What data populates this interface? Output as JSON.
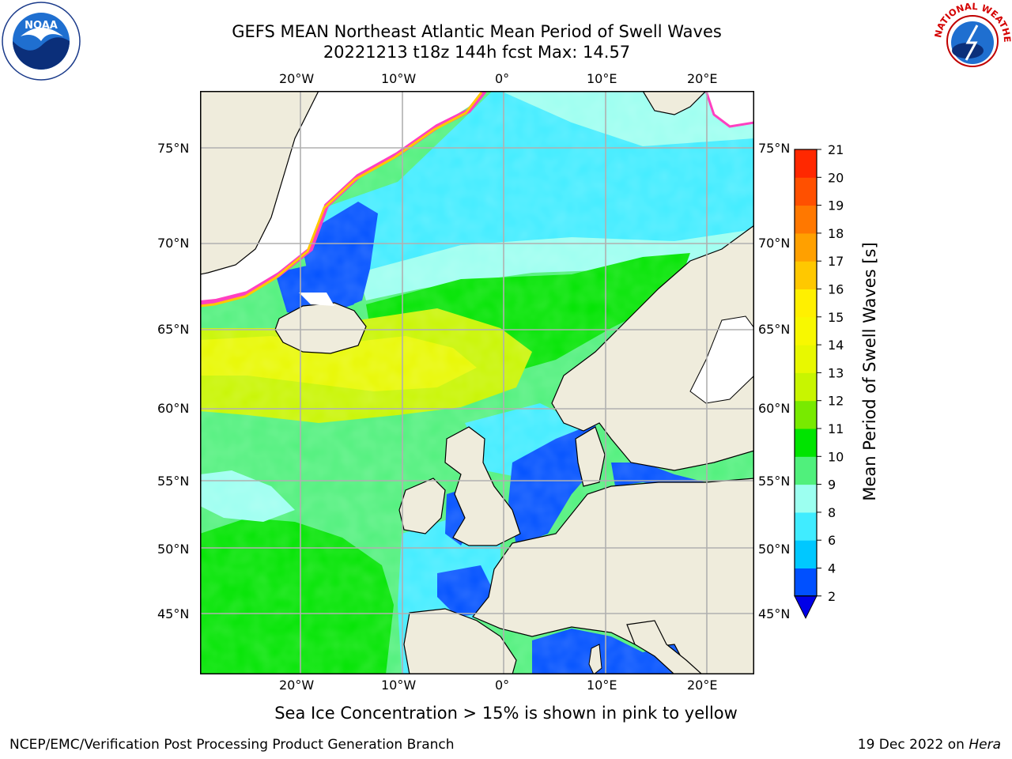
{
  "header": {
    "title": "GEFS MEAN Northeast Atlantic Mean Period of Swell Waves",
    "subtitle": "20221213 t18z 144h fcst   Max: 14.57"
  },
  "logos": {
    "left": {
      "icon": "noaa-logo",
      "text": "NOAA"
    },
    "right": {
      "icon": "national-weather-service-logo",
      "text": "NATIONAL WEATHER SERVICE"
    }
  },
  "map": {
    "lon_labels_top": [
      "20°W",
      "10°W",
      "0°",
      "10°E",
      "20°E"
    ],
    "lon_labels_bottom": [
      "20°W",
      "10°W",
      "0°",
      "10°E",
      "20°E"
    ],
    "lat_labels_left": [
      "75°N",
      "70°N",
      "65°N",
      "60°N",
      "55°N",
      "50°N",
      "45°N"
    ],
    "lat_labels_right": [
      "75°N",
      "70°N",
      "65°N",
      "60°N",
      "55°N",
      "50°N",
      "45°N"
    ],
    "colors": {
      "land": "#efecdc",
      "no_data": "#ffffff",
      "gridline": "#b0b0b0",
      "coastline": "#000000"
    }
  },
  "colorbar": {
    "label": "Mean Period of Swell Waves [s]",
    "ticks": [
      "2",
      "4",
      "6",
      "8",
      "9",
      "10",
      "11",
      "12",
      "13",
      "14",
      "15",
      "16",
      "17",
      "18",
      "19",
      "20",
      "21"
    ],
    "colors": [
      "#0050ff",
      "#00c8ff",
      "#40ecff",
      "#9cfff0",
      "#50f07c",
      "#00e400",
      "#78ea00",
      "#c8f500",
      "#e8f800",
      "#f8f800",
      "#fff000",
      "#ffc800",
      "#ffa000",
      "#ff7800",
      "#ff5000",
      "#ff2800"
    ],
    "under_color": "#0000e8"
  },
  "caption": "Sea Ice Concentration > 15% is shown in pink to yellow",
  "footer": {
    "left": "NCEP/EMC/Verification Post Processing Product Generation Branch",
    "right_prefix": "19 Dec 2022 on ",
    "right_machine": "Hera"
  }
}
